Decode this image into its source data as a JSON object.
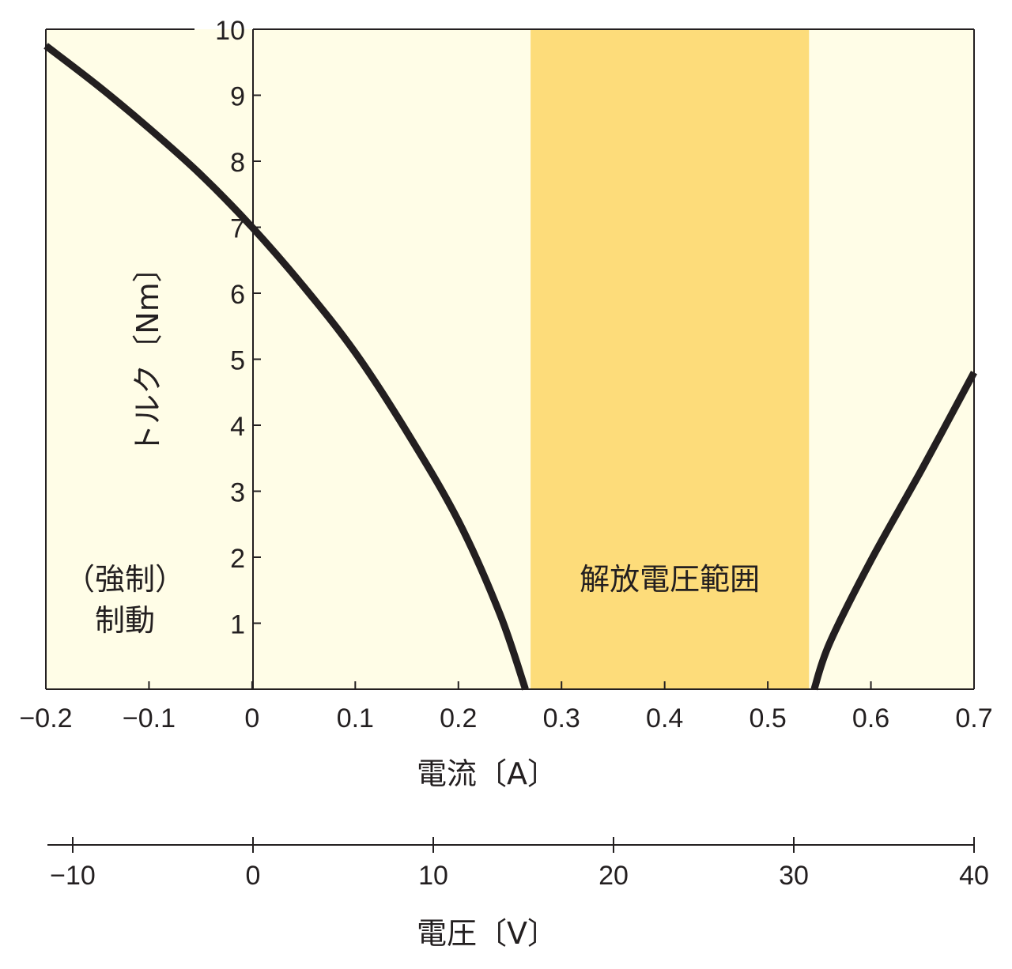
{
  "chart_data": {
    "type": "line",
    "xlabel": "電流〔A〕",
    "ylabel": "トルク〔Nm〕",
    "secondary_xlabel": "電圧〔V〕",
    "xlim": [
      -0.2,
      0.7
    ],
    "ylim": [
      0,
      10
    ],
    "secondary_xlim": [
      -10,
      40
    ],
    "x_ticks": [
      "−0.2",
      "−0.1",
      "0",
      "0.1",
      "0.2",
      "0.3",
      "0.4",
      "0.5",
      "0.6",
      "0.7"
    ],
    "y_ticks": [
      "1",
      "2",
      "3",
      "4",
      "5",
      "6",
      "7",
      "8",
      "9",
      "10"
    ],
    "secondary_x_ticks": [
      "−10",
      "0",
      "10",
      "20",
      "30",
      "40"
    ],
    "grid": false,
    "shaded_region": {
      "x_start": 0.27,
      "x_end": 0.54,
      "label": "解放電圧範囲",
      "color": "#fddc7a"
    },
    "left_annotation": [
      "（強制）",
      "制動"
    ],
    "series": [
      {
        "color": "#231f20",
        "points": [
          {
            "x": -0.2,
            "y": 9.75
          },
          {
            "x": -0.15,
            "y": 9.15
          },
          {
            "x": -0.1,
            "y": 8.5
          },
          {
            "x": -0.05,
            "y": 7.8
          },
          {
            "x": 0.0,
            "y": 7.0
          },
          {
            "x": 0.05,
            "y": 6.1
          },
          {
            "x": 0.1,
            "y": 5.1
          },
          {
            "x": 0.15,
            "y": 3.9
          },
          {
            "x": 0.2,
            "y": 2.55
          },
          {
            "x": 0.24,
            "y": 1.15
          },
          {
            "x": 0.265,
            "y": 0.0
          }
        ]
      },
      {
        "color": "#231f20",
        "points": [
          {
            "x": 0.545,
            "y": 0.0
          },
          {
            "x": 0.56,
            "y": 0.7
          },
          {
            "x": 0.6,
            "y": 1.95
          },
          {
            "x": 0.65,
            "y": 3.35
          },
          {
            "x": 0.7,
            "y": 4.8
          }
        ]
      }
    ],
    "colors": {
      "background": "#fffde7",
      "curve": "#231f20",
      "axis": "#231f20"
    }
  }
}
